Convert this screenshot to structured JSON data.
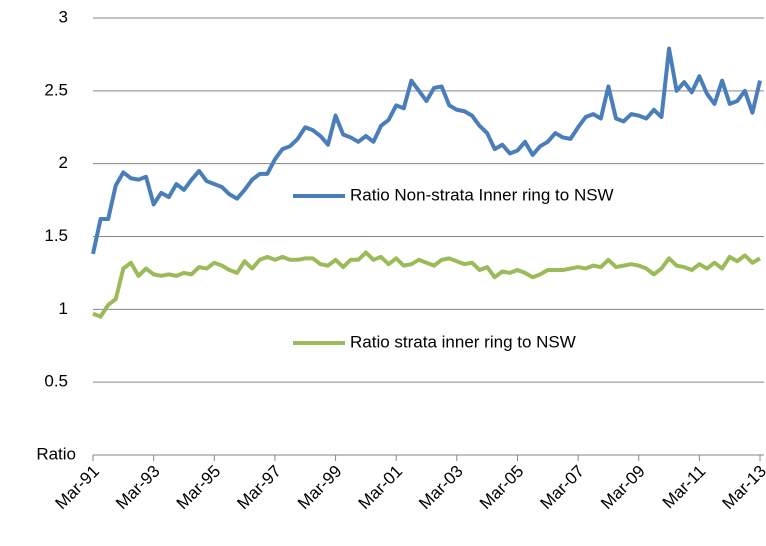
{
  "chart_data": {
    "type": "line",
    "categories": [
      "Mar-91",
      null,
      null,
      null,
      null,
      null,
      null,
      null,
      "Mar-93",
      null,
      null,
      null,
      null,
      null,
      null,
      null,
      "Mar-95",
      null,
      null,
      null,
      null,
      null,
      null,
      null,
      "Mar-97",
      null,
      null,
      null,
      null,
      null,
      null,
      null,
      "Mar-99",
      null,
      null,
      null,
      null,
      null,
      null,
      null,
      "Mar-01",
      null,
      null,
      null,
      null,
      null,
      null,
      null,
      "Mar-03",
      null,
      null,
      null,
      null,
      null,
      null,
      null,
      "Mar-05",
      null,
      null,
      null,
      null,
      null,
      null,
      null,
      "Mar-07",
      null,
      null,
      null,
      null,
      null,
      null,
      null,
      "Mar-09",
      null,
      null,
      null,
      null,
      null,
      null,
      null,
      "Mar-11",
      null,
      null,
      null,
      null,
      null,
      null,
      null,
      "Mar-13"
    ],
    "series": [
      {
        "name": "Ratio Non-strata Inner ring to NSW",
        "color": "#4a7ebb",
        "values": [
          1.38,
          1.62,
          1.62,
          1.85,
          1.94,
          1.9,
          1.89,
          1.91,
          1.72,
          1.8,
          1.77,
          1.86,
          1.82,
          1.89,
          1.95,
          1.88,
          1.86,
          1.84,
          1.79,
          1.76,
          1.82,
          1.89,
          1.93,
          1.93,
          2.03,
          2.1,
          2.12,
          2.17,
          2.25,
          2.23,
          2.19,
          2.13,
          2.33,
          2.2,
          2.18,
          2.15,
          2.19,
          2.15,
          2.26,
          2.3,
          2.4,
          2.38,
          2.57,
          2.5,
          2.43,
          2.52,
          2.53,
          2.4,
          2.37,
          2.36,
          2.33,
          2.26,
          2.21,
          2.1,
          2.13,
          2.07,
          2.09,
          2.15,
          2.06,
          2.12,
          2.15,
          2.21,
          2.18,
          2.17,
          2.25,
          2.32,
          2.34,
          2.31,
          2.53,
          2.31,
          2.29,
          2.34,
          2.33,
          2.31,
          2.37,
          2.32,
          2.79,
          2.5,
          2.56,
          2.49,
          2.6,
          2.48,
          2.41,
          2.57,
          2.41,
          2.43,
          2.5,
          2.35,
          2.57
        ]
      },
      {
        "name": "Ratio strata inner ring to NSW",
        "color": "#9bbb59",
        "values": [
          0.97,
          0.95,
          1.03,
          1.07,
          1.28,
          1.32,
          1.23,
          1.28,
          1.24,
          1.23,
          1.24,
          1.23,
          1.25,
          1.24,
          1.29,
          1.28,
          1.32,
          1.3,
          1.27,
          1.25,
          1.33,
          1.28,
          1.34,
          1.36,
          1.34,
          1.36,
          1.34,
          1.34,
          1.35,
          1.35,
          1.31,
          1.3,
          1.34,
          1.29,
          1.34,
          1.34,
          1.39,
          1.34,
          1.36,
          1.31,
          1.35,
          1.3,
          1.31,
          1.34,
          1.32,
          1.3,
          1.34,
          1.35,
          1.33,
          1.31,
          1.32,
          1.27,
          1.29,
          1.22,
          1.26,
          1.25,
          1.27,
          1.25,
          1.22,
          1.24,
          1.27,
          1.27,
          1.27,
          1.28,
          1.29,
          1.28,
          1.3,
          1.29,
          1.34,
          1.29,
          1.3,
          1.31,
          1.3,
          1.28,
          1.24,
          1.28,
          1.35,
          1.3,
          1.29,
          1.27,
          1.31,
          1.28,
          1.32,
          1.28,
          1.36,
          1.33,
          1.37,
          1.32,
          1.35
        ]
      }
    ],
    "ylim": [
      0,
      3
    ],
    "yticks": [
      {
        "value": 0,
        "label": "Ratio"
      },
      0.5,
      1,
      1.5,
      2,
      2.5,
      3
    ],
    "grid": true
  }
}
